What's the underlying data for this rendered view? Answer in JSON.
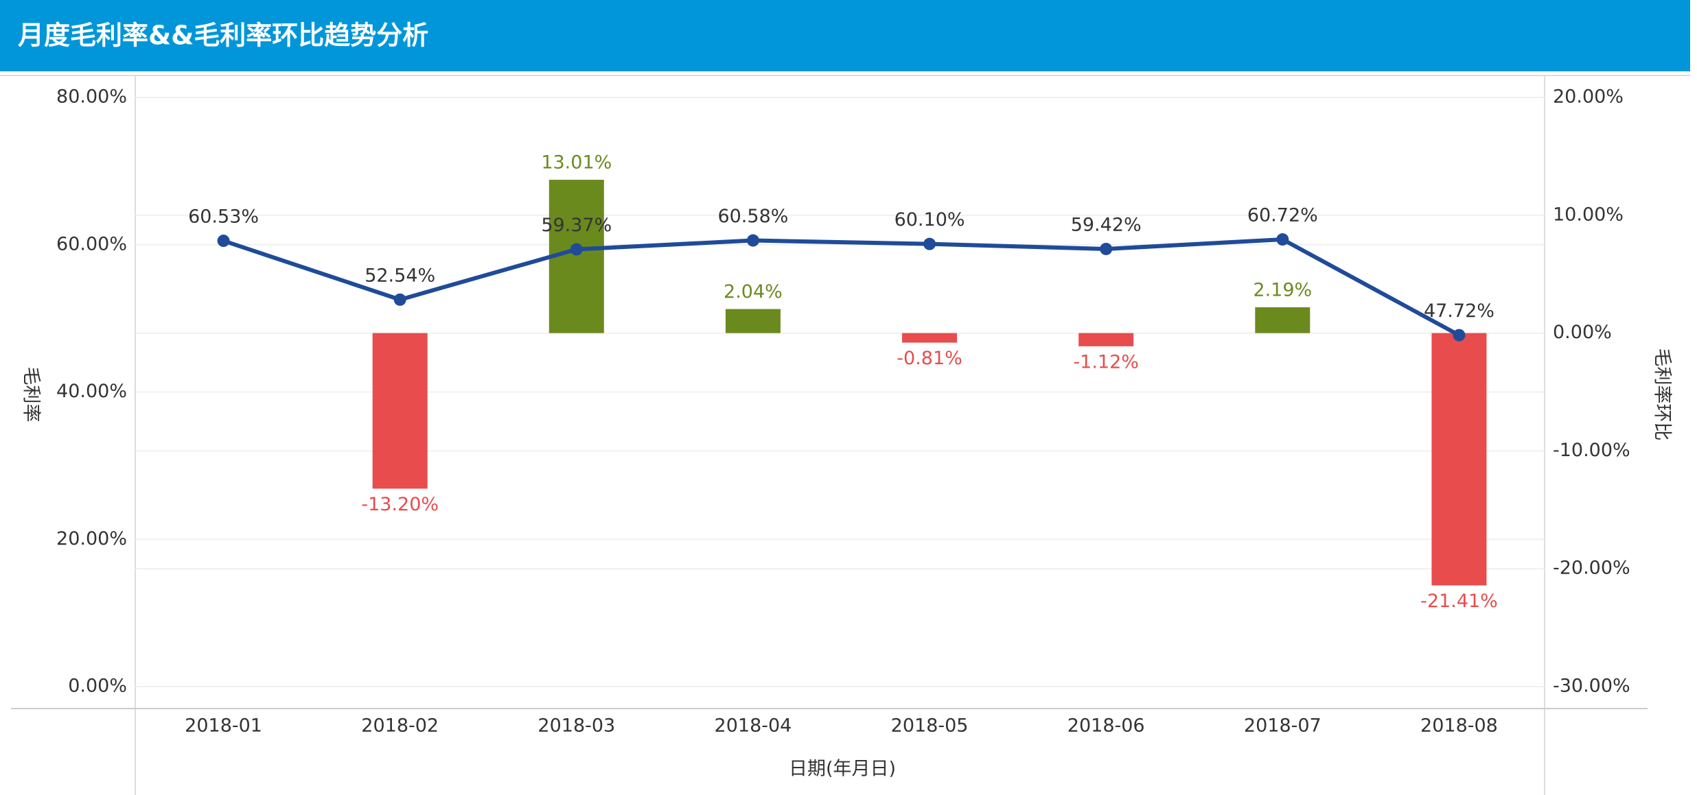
{
  "chart_data": {
    "type": "bar-line",
    "title": "月度毛利率&&毛利率环比趋势分析",
    "xlabel": "日期(年月日)",
    "ylabel": "毛利率",
    "y2label": "毛利率环比",
    "categories": [
      "2018-01",
      "2018-02",
      "2018-03",
      "2018-04",
      "2018-05",
      "2018-06",
      "2018-07",
      "2018-08"
    ],
    "series": [
      {
        "name": "毛利率",
        "type": "line",
        "color": "#1f4b99",
        "values": [
          60.53,
          52.54,
          59.37,
          60.58,
          60.1,
          59.42,
          60.72,
          47.72
        ],
        "value_labels": [
          "60.53%",
          "52.54%",
          "59.37%",
          "60.58%",
          "60.10%",
          "59.42%",
          "60.72%",
          "47.72%"
        ]
      },
      {
        "name": "毛利率环比",
        "type": "bar",
        "axis": "y2",
        "positive_color": "#6b8a1e",
        "negative_color": "#e84c4c",
        "values": [
          null,
          -13.2,
          13.01,
          2.04,
          -0.81,
          -1.12,
          2.19,
          -21.41
        ],
        "value_labels": [
          null,
          "-13.20%",
          "13.01%",
          "2.04%",
          "-0.81%",
          "-1.12%",
          "2.19%",
          "-21.41%"
        ]
      }
    ],
    "ylim": [
      0,
      80
    ],
    "yticks": [
      {
        "value": 0,
        "label": "0.00%"
      },
      {
        "value": 20,
        "label": "20.00%"
      },
      {
        "value": 40,
        "label": "40.00%"
      },
      {
        "value": 60,
        "label": "60.00%"
      },
      {
        "value": 80,
        "label": "80.00%"
      }
    ],
    "y2lim": [
      -30,
      20
    ],
    "y2ticks": [
      {
        "value": -30,
        "label": "-30.00%"
      },
      {
        "value": -20,
        "label": "-20.00%"
      },
      {
        "value": -10,
        "label": "-10.00%"
      },
      {
        "value": 0,
        "label": "0.00%"
      },
      {
        "value": 10,
        "label": "10.00%"
      },
      {
        "value": 20,
        "label": "20.00%"
      }
    ],
    "grid": true
  }
}
